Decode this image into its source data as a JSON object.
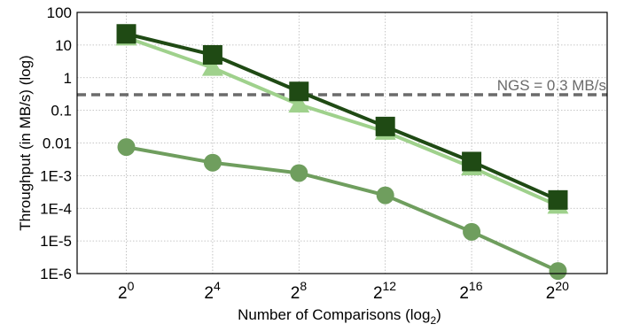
{
  "chart_data": {
    "type": "line",
    "title": "",
    "xlabel": "Number of Comparisons (log",
    "xlabel_sub": "2",
    "xlabel_close": ")",
    "ylabel": "Throughput (in MB/s) (log)",
    "y_scale": "log",
    "ylim": [
      1e-06,
      100
    ],
    "yticks": [
      100,
      10,
      1,
      0.1,
      0.01,
      0.001,
      0.0001,
      1e-05,
      1e-06
    ],
    "ytick_labels": [
      "100",
      "10",
      "1",
      "0.1",
      "0.01",
      "1E-3",
      "1E-4",
      "1E-5",
      "1E-6"
    ],
    "x_scale": "log2",
    "x": [
      1,
      16,
      256,
      4096,
      65536,
      1048576
    ],
    "xtick_base": "2",
    "xtick_exponents": [
      "0",
      "4",
      "8",
      "12",
      "16",
      "20"
    ],
    "grid": true,
    "series": [
      {
        "marker": "square",
        "color": "#1f4a14",
        "values": [
          22,
          5,
          0.38,
          0.032,
          0.0027,
          0.00018
        ]
      },
      {
        "marker": "triangle",
        "color": "#9fd18c",
        "values": [
          17,
          2,
          0.15,
          0.022,
          0.0018,
          0.00012
        ]
      },
      {
        "marker": "circle",
        "color": "#6f9e5e",
        "values": [
          0.0075,
          0.0025,
          0.0012,
          0.00025,
          1.9e-05,
          1.2e-06
        ]
      }
    ],
    "reference_line": {
      "value": 0.3,
      "label": "NGS = 0.3 MB/s",
      "color": "#6b6b6b"
    }
  }
}
